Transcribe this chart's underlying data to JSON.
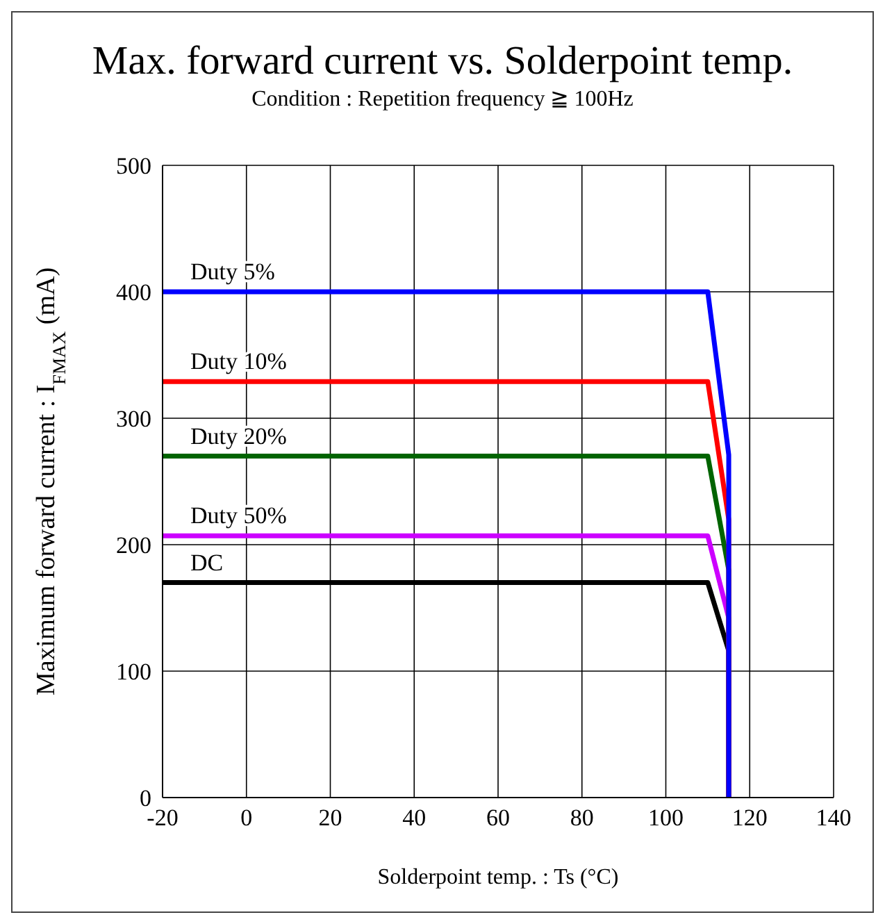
{
  "chart_data": {
    "type": "line",
    "title": "Max. forward current vs. Solderpoint temp.",
    "subtitle": "Condition : Repetition frequency ≧ 100Hz",
    "xlabel": "Solderpoint temp. : Ts (°C)",
    "ylabel": "Maximum forward current : I$_{FMAX}$  (mA)",
    "xlim": [
      -20,
      140
    ],
    "xticks": [
      -20,
      0,
      20,
      40,
      60,
      80,
      100,
      120,
      140
    ],
    "ylim": [
      0,
      500
    ],
    "yticks": [
      0,
      100,
      200,
      300,
      400,
      500
    ],
    "grid": true,
    "legend": false,
    "marker": "none",
    "line_style": "solid",
    "series": [
      {
        "name": "Duty 5%",
        "color": "#0000ff",
        "x": [
          -20,
          110,
          115,
          115
        ],
        "values": [
          400,
          400,
          271,
          0
        ]
      },
      {
        "name": "Duty 10%",
        "color": "#ff0000",
        "x": [
          -20,
          110,
          115,
          115
        ],
        "values": [
          329,
          329,
          220,
          0
        ]
      },
      {
        "name": "Duty 20%",
        "color": "#006400",
        "x": [
          -20,
          110,
          115,
          115
        ],
        "values": [
          270,
          270,
          180,
          0
        ]
      },
      {
        "name": "Duty 50%",
        "color": "#cc00ff",
        "x": [
          -20,
          110,
          115,
          115
        ],
        "values": [
          207,
          207,
          142,
          0
        ]
      },
      {
        "name": "DC",
        "color": "#000000",
        "x": [
          -20,
          110,
          115,
          115
        ],
        "values": [
          170,
          170,
          116,
          0
        ]
      }
    ]
  }
}
